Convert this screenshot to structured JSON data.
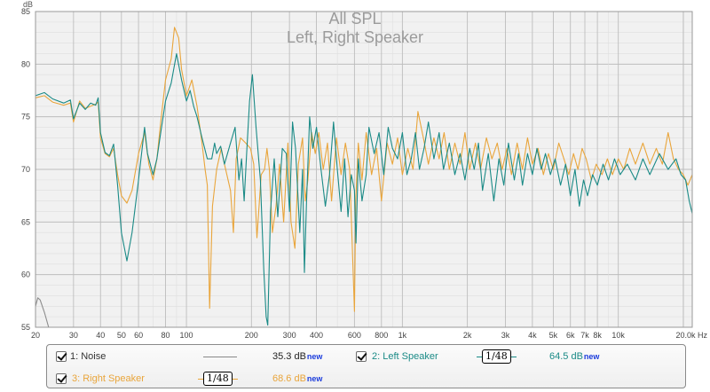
{
  "title": "All SPL",
  "subtitle": "Left, Right Speaker",
  "colors": {
    "left": "#1a8a86",
    "right": "#e9a53b",
    "noise": "#8c8c8c",
    "grid_major": "#bdbdbd",
    "grid_minor": "#dedede",
    "plot_bg": "#f1f1f1",
    "title_text": "#9b9b9b",
    "new_badge": "#1a3bdc"
  },
  "legend": {
    "items": [
      {
        "label": "1: Noise",
        "value": "35.3 dB",
        "badge": "new",
        "color": "#8c8c8c",
        "smoothing": ""
      },
      {
        "label": "2: Left Speaker",
        "value": "64.5 dB",
        "badge": "new",
        "color": "#1a8a86",
        "smoothing": "1/48"
      },
      {
        "label": "3: Right Speaker",
        "value": "68.6 dB",
        "badge": "new",
        "color": "#e9a53b",
        "smoothing": "1/48"
      }
    ]
  },
  "chart_data": {
    "type": "line",
    "title": "All SPL",
    "subtitle": "Left, Right Speaker",
    "xlabel": "",
    "ylabel": "dB",
    "xscale": "log",
    "xlim": [
      20,
      22000
    ],
    "ylim": [
      55,
      85
    ],
    "grid": true,
    "legend_position": "bottom",
    "x_ticks": [
      20,
      30,
      40,
      50,
      60,
      80,
      100,
      200,
      300,
      400,
      600,
      800,
      1000,
      2000,
      3000,
      4000,
      5000,
      6000,
      7000,
      8000,
      10000,
      20000
    ],
    "x_tick_labels": [
      "20",
      "30",
      "40",
      "50",
      "60",
      "80",
      "100",
      "200",
      "300",
      "400",
      "600",
      "800",
      "1k",
      "2k",
      "3k",
      "4k",
      "5k",
      "6k",
      "7k",
      "8k",
      "10k",
      "20.0k Hz"
    ],
    "y_ticks": [
      55,
      60,
      65,
      70,
      75,
      80,
      85
    ],
    "y_tick_labels": [
      "55",
      "60",
      "65",
      "70",
      "75",
      "80",
      "85"
    ],
    "series": [
      {
        "name": "1: Noise",
        "color": "#8c8c8c",
        "points": [
          [
            20,
            57.0
          ],
          [
            20.5,
            57.8
          ],
          [
            21,
            57.6
          ],
          [
            22,
            56.4
          ],
          [
            23,
            55.0
          ]
        ]
      },
      {
        "name": "2: Left Speaker",
        "color": "#1a8a86",
        "points": [
          [
            20,
            77.0
          ],
          [
            22,
            77.3
          ],
          [
            24,
            76.7
          ],
          [
            27,
            76.3
          ],
          [
            29,
            76.6
          ],
          [
            30,
            74.8
          ],
          [
            32,
            76.3
          ],
          [
            34,
            75.7
          ],
          [
            36,
            76.3
          ],
          [
            38,
            76.1
          ],
          [
            39,
            76.8
          ],
          [
            40,
            73.5
          ],
          [
            42,
            71.6
          ],
          [
            44,
            71.3
          ],
          [
            46,
            72.4
          ],
          [
            48,
            68.5
          ],
          [
            50,
            64.0
          ],
          [
            53,
            61.3
          ],
          [
            56,
            64.0
          ],
          [
            60,
            69.0
          ],
          [
            64,
            74.0
          ],
          [
            66,
            71.5
          ],
          [
            70,
            69.5
          ],
          [
            73,
            71.0
          ],
          [
            76,
            73.5
          ],
          [
            80,
            76.5
          ],
          [
            85,
            78.2
          ],
          [
            90,
            81.0
          ],
          [
            95,
            78.5
          ],
          [
            100,
            76.5
          ],
          [
            104,
            77.5
          ],
          [
            108,
            76.0
          ],
          [
            112,
            75.0
          ],
          [
            118,
            73.0
          ],
          [
            125,
            71.0
          ],
          [
            131,
            71.0
          ],
          [
            135,
            72.5
          ],
          [
            138,
            71.5
          ],
          [
            144,
            72.2
          ],
          [
            150,
            70.5
          ],
          [
            160,
            72.5
          ],
          [
            168,
            74.0
          ],
          [
            175,
            69.0
          ],
          [
            180,
            71.0
          ],
          [
            185,
            67.0
          ],
          [
            190,
            71.5
          ],
          [
            196,
            76.5
          ],
          [
            202,
            79.0
          ],
          [
            210,
            74.0
          ],
          [
            220,
            69.0
          ],
          [
            228,
            60.5
          ],
          [
            234,
            56.0
          ],
          [
            238,
            55.2
          ],
          [
            245,
            66.0
          ],
          [
            255,
            71.0
          ],
          [
            265,
            65.5
          ],
          [
            278,
            72.0
          ],
          [
            290,
            71.5
          ],
          [
            300,
            66.0
          ],
          [
            310,
            74.5
          ],
          [
            320,
            72.0
          ],
          [
            335,
            64.0
          ],
          [
            345,
            70.0
          ],
          [
            352,
            60.2
          ],
          [
            360,
            67.0
          ],
          [
            372,
            75.0
          ],
          [
            385,
            72.0
          ],
          [
            400,
            74.0
          ],
          [
            420,
            70.0
          ],
          [
            440,
            66.5
          ],
          [
            460,
            69.5
          ],
          [
            480,
            74.5
          ],
          [
            500,
            70.0
          ],
          [
            520,
            66.0
          ],
          [
            540,
            71.0
          ],
          [
            560,
            65.5
          ],
          [
            580,
            69.5
          ],
          [
            600,
            68.0
          ],
          [
            610,
            63.0
          ],
          [
            625,
            71.0
          ],
          [
            650,
            67.0
          ],
          [
            680,
            69.5
          ],
          [
            700,
            74.0
          ],
          [
            740,
            71.5
          ],
          [
            780,
            73.5
          ],
          [
            820,
            69.5
          ],
          [
            860,
            74.0
          ],
          [
            900,
            72.0
          ],
          [
            950,
            71.0
          ],
          [
            1000,
            73.5
          ],
          [
            1050,
            69.5
          ],
          [
            1100,
            71.0
          ],
          [
            1150,
            73.5
          ],
          [
            1200,
            70.0
          ],
          [
            1260,
            72.0
          ],
          [
            1320,
            74.5
          ],
          [
            1400,
            71.0
          ],
          [
            1480,
            73.5
          ],
          [
            1550,
            70.0
          ],
          [
            1650,
            72.5
          ],
          [
            1750,
            69.5
          ],
          [
            1850,
            71.5
          ],
          [
            1950,
            69.0
          ],
          [
            2050,
            72.0
          ],
          [
            2150,
            70.0
          ],
          [
            2250,
            72.5
          ],
          [
            2350,
            68.0
          ],
          [
            2500,
            71.5
          ],
          [
            2650,
            67.0
          ],
          [
            2800,
            71.0
          ],
          [
            2950,
            68.5
          ],
          [
            3100,
            72.5
          ],
          [
            3300,
            69.0
          ],
          [
            3450,
            71.5
          ],
          [
            3600,
            68.5
          ],
          [
            3800,
            71.5
          ],
          [
            4000,
            69.5
          ],
          [
            4200,
            72.0
          ],
          [
            4400,
            70.0
          ],
          [
            4600,
            71.5
          ],
          [
            4850,
            69.5
          ],
          [
            5100,
            71.0
          ],
          [
            5400,
            68.5
          ],
          [
            5700,
            70.5
          ],
          [
            6000,
            67.5
          ],
          [
            6300,
            70.0
          ],
          [
            6600,
            66.5
          ],
          [
            6900,
            69.0
          ],
          [
            7200,
            67.5
          ],
          [
            7600,
            69.5
          ],
          [
            8000,
            68.5
          ],
          [
            8500,
            70.5
          ],
          [
            9000,
            69.0
          ],
          [
            9600,
            71.0
          ],
          [
            10200,
            69.5
          ],
          [
            11000,
            70.5
          ],
          [
            12000,
            69.0
          ],
          [
            13000,
            71.0
          ],
          [
            14000,
            69.5
          ],
          [
            15500,
            71.5
          ],
          [
            17000,
            70.0
          ],
          [
            18500,
            71.0
          ],
          [
            19500,
            69.5
          ],
          [
            20500,
            69.0
          ],
          [
            21300,
            67.0
          ],
          [
            22000,
            65.8
          ]
        ]
      },
      {
        "name": "3: Right Speaker",
        "color": "#e9a53b",
        "points": [
          [
            20,
            76.8
          ],
          [
            22,
            77.0
          ],
          [
            24,
            76.4
          ],
          [
            27,
            76.1
          ],
          [
            29,
            76.3
          ],
          [
            30,
            74.5
          ],
          [
            32,
            76.5
          ],
          [
            34,
            75.8
          ],
          [
            36,
            76.0
          ],
          [
            38,
            76.2
          ],
          [
            39,
            76.4
          ],
          [
            40,
            73.0
          ],
          [
            42,
            71.5
          ],
          [
            44,
            71.2
          ],
          [
            46,
            72.0
          ],
          [
            48,
            69.5
          ],
          [
            50,
            67.5
          ],
          [
            53,
            66.8
          ],
          [
            56,
            68.0
          ],
          [
            60,
            71.5
          ],
          [
            64,
            73.5
          ],
          [
            67,
            70.5
          ],
          [
            70,
            69.0
          ],
          [
            73,
            71.0
          ],
          [
            76,
            74.5
          ],
          [
            80,
            78.5
          ],
          [
            85,
            80.5
          ],
          [
            88,
            83.5
          ],
          [
            92,
            82.5
          ],
          [
            95,
            79.5
          ],
          [
            100,
            77.0
          ],
          [
            106,
            78.5
          ],
          [
            112,
            76.0
          ],
          [
            118,
            72.5
          ],
          [
            122,
            70.0
          ],
          [
            125,
            68.5
          ],
          [
            128,
            56.8
          ],
          [
            132,
            66.5
          ],
          [
            138,
            70.0
          ],
          [
            145,
            72.0
          ],
          [
            150,
            70.5
          ],
          [
            160,
            68.0
          ],
          [
            165,
            64.0
          ],
          [
            170,
            71.0
          ],
          [
            178,
            73.0
          ],
          [
            188,
            72.5
          ],
          [
            198,
            72.0
          ],
          [
            205,
            70.5
          ],
          [
            212,
            63.5
          ],
          [
            222,
            69.5
          ],
          [
            230,
            70.0
          ],
          [
            236,
            72.0
          ],
          [
            242,
            70.0
          ],
          [
            250,
            64.0
          ],
          [
            260,
            66.5
          ],
          [
            270,
            70.5
          ],
          [
            282,
            65.0
          ],
          [
            295,
            72.5
          ],
          [
            305,
            65.0
          ],
          [
            318,
            62.5
          ],
          [
            330,
            70.5
          ],
          [
            345,
            73.0
          ],
          [
            355,
            67.0
          ],
          [
            365,
            69.0
          ],
          [
            380,
            73.5
          ],
          [
            395,
            71.5
          ],
          [
            410,
            73.5
          ],
          [
            430,
            70.0
          ],
          [
            450,
            72.5
          ],
          [
            470,
            67.0
          ],
          [
            495,
            73.0
          ],
          [
            520,
            69.5
          ],
          [
            545,
            72.5
          ],
          [
            570,
            70.0
          ],
          [
            590,
            61.0
          ],
          [
            600,
            56.5
          ],
          [
            608,
            67.0
          ],
          [
            625,
            72.5
          ],
          [
            650,
            69.0
          ],
          [
            680,
            73.5
          ],
          [
            720,
            69.5
          ],
          [
            760,
            72.0
          ],
          [
            800,
            67.0
          ],
          [
            850,
            72.5
          ],
          [
            900,
            70.5
          ],
          [
            950,
            73.0
          ],
          [
            1000,
            69.5
          ],
          [
            1060,
            72.0
          ],
          [
            1120,
            70.0
          ],
          [
            1180,
            75.5
          ],
          [
            1250,
            73.0
          ],
          [
            1320,
            70.5
          ],
          [
            1400,
            73.0
          ],
          [
            1480,
            71.0
          ],
          [
            1560,
            73.5
          ],
          [
            1650,
            70.0
          ],
          [
            1750,
            72.5
          ],
          [
            1850,
            70.5
          ],
          [
            1950,
            73.5
          ],
          [
            2050,
            70.0
          ],
          [
            2180,
            72.5
          ],
          [
            2300,
            70.0
          ],
          [
            2450,
            73.0
          ],
          [
            2600,
            71.0
          ],
          [
            2750,
            72.5
          ],
          [
            2900,
            70.0
          ],
          [
            3050,
            72.0
          ],
          [
            3200,
            69.5
          ],
          [
            3400,
            72.5
          ],
          [
            3600,
            70.0
          ],
          [
            3800,
            73.0
          ],
          [
            4000,
            70.5
          ],
          [
            4250,
            72.0
          ],
          [
            4500,
            69.5
          ],
          [
            4750,
            71.5
          ],
          [
            5000,
            70.0
          ],
          [
            5300,
            72.5
          ],
          [
            5600,
            71.0
          ],
          [
            5900,
            69.5
          ],
          [
            6200,
            71.5
          ],
          [
            6500,
            70.0
          ],
          [
            6800,
            72.0
          ],
          [
            7100,
            71.0
          ],
          [
            7500,
            69.0
          ],
          [
            7900,
            70.5
          ],
          [
            8400,
            69.5
          ],
          [
            8900,
            71.0
          ],
          [
            9400,
            69.5
          ],
          [
            10000,
            71.0
          ],
          [
            10600,
            70.0
          ],
          [
            11300,
            72.0
          ],
          [
            12000,
            70.5
          ],
          [
            13000,
            72.5
          ],
          [
            14000,
            70.5
          ],
          [
            15000,
            72.0
          ],
          [
            16000,
            70.5
          ],
          [
            17000,
            73.5
          ],
          [
            18000,
            71.0
          ],
          [
            19000,
            70.0
          ],
          [
            20000,
            69.5
          ],
          [
            21000,
            68.5
          ],
          [
            22000,
            69.5
          ]
        ]
      }
    ]
  }
}
